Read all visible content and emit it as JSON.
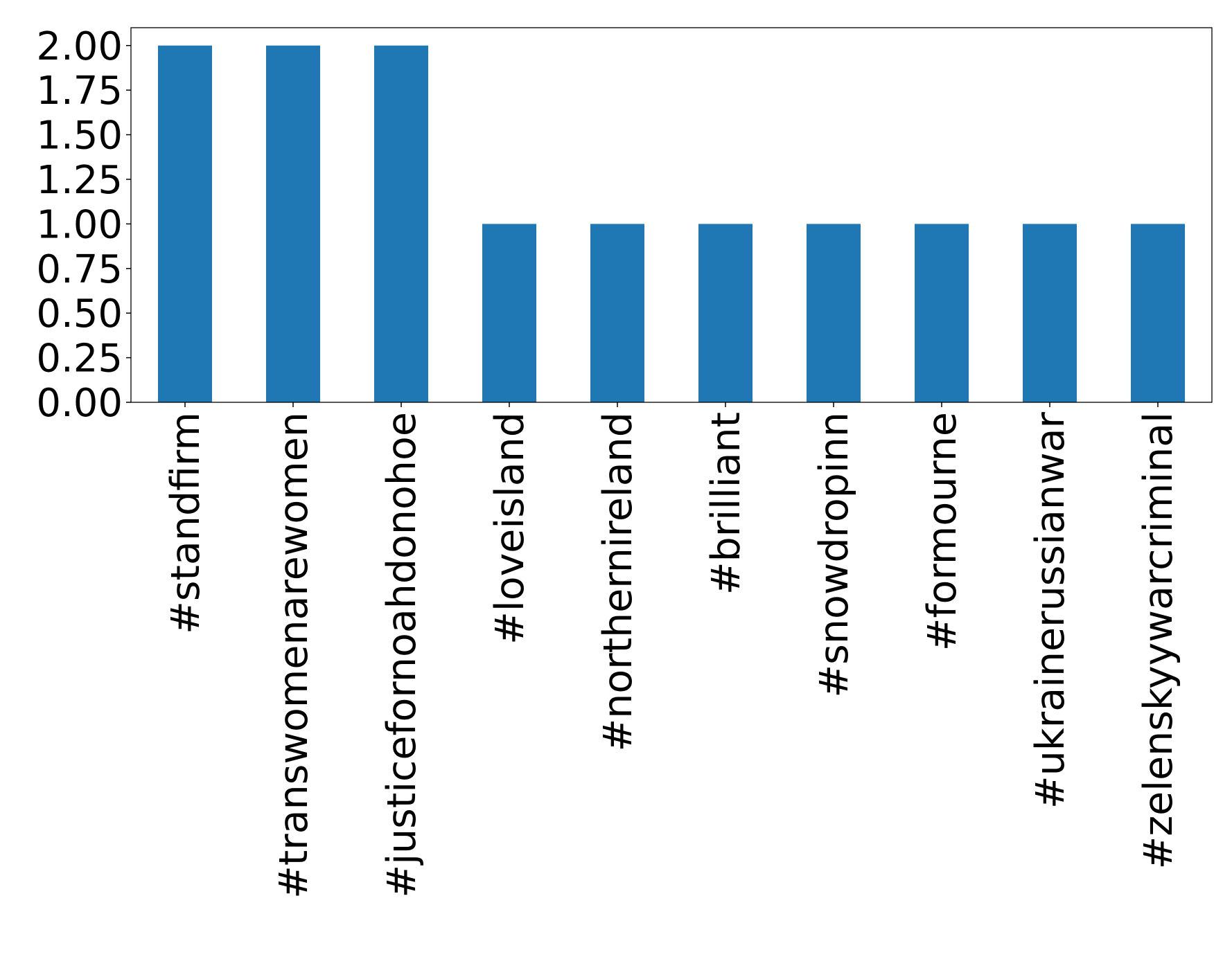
{
  "chart_data": {
    "type": "bar",
    "categories": [
      "#standfirm",
      "#transwomenarewomen",
      "#justicefornoahdonohoe",
      "#loveisland",
      "#northernireland",
      "#brilliant",
      "#snowdropinn",
      "#formourne",
      "#ukrainerussianwar",
      "#zelenskyywarcriminal"
    ],
    "values": [
      2,
      2,
      2,
      1,
      1,
      1,
      1,
      1,
      1,
      1
    ],
    "color": "#1f77b4",
    "ylim": [
      0,
      2.1
    ],
    "yticks": [
      {
        "value": 0,
        "label": "0.00"
      },
      {
        "value": 0.25,
        "label": "0.25"
      },
      {
        "value": 0.5,
        "label": "0.50"
      },
      {
        "value": 0.75,
        "label": "0.75"
      },
      {
        "value": 1,
        "label": "1.00"
      },
      {
        "value": 1.25,
        "label": "1.25"
      },
      {
        "value": 1.5,
        "label": "1.50"
      },
      {
        "value": 1.75,
        "label": "1.75"
      },
      {
        "value": 2,
        "label": "2.00"
      }
    ],
    "grid": false
  }
}
